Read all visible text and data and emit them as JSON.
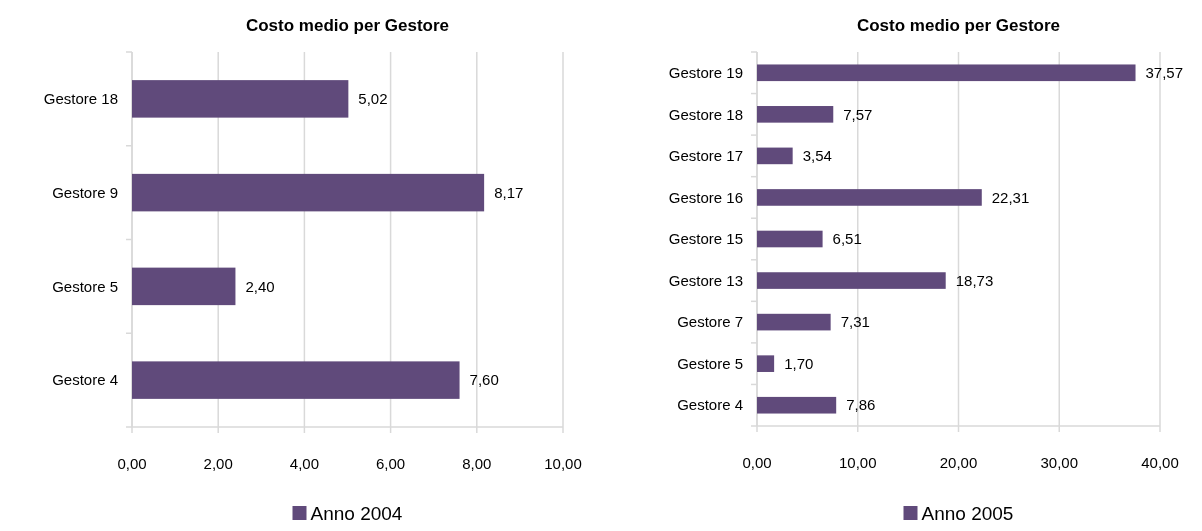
{
  "chart_data": [
    {
      "type": "bar",
      "orientation": "horizontal",
      "title": "Costo medio per Gestore",
      "categories": [
        "Gestore 18",
        "Gestore 9",
        "Gestore 5",
        "Gestore 4"
      ],
      "series": [
        {
          "name": "Anno 2004",
          "color": "#604a7b",
          "values": [
            5.02,
            8.17,
            2.4,
            7.6
          ],
          "value_labels": [
            "5,02",
            "8,17",
            "2,40",
            "7,60"
          ]
        }
      ],
      "xlim": [
        0,
        10
      ],
      "xticks": [
        {
          "value": 0,
          "label": "0,00"
        },
        {
          "value": 2,
          "label": "2,00"
        },
        {
          "value": 4,
          "label": "4,00"
        },
        {
          "value": 6,
          "label": "6,00"
        },
        {
          "value": 8,
          "label": "8,00"
        },
        {
          "value": 10,
          "label": "10,00"
        }
      ],
      "grid": "x",
      "legend": "bottom"
    },
    {
      "type": "bar",
      "orientation": "horizontal",
      "title": "Costo medio per Gestore",
      "categories": [
        "Gestore 19",
        "Gestore 18",
        "Gestore 17",
        "Gestore 16",
        "Gestore 15",
        "Gestore 13",
        "Gestore 7",
        "Gestore 5",
        "Gestore 4"
      ],
      "series": [
        {
          "name": "Anno 2005",
          "color": "#604a7b",
          "values": [
            37.57,
            7.57,
            3.54,
            22.31,
            6.51,
            18.73,
            7.31,
            1.7,
            7.86
          ],
          "value_labels": [
            "37,57",
            "7,57",
            "3,54",
            "22,31",
            "6,51",
            "18,73",
            "7,31",
            "1,70",
            "7,86"
          ]
        }
      ],
      "xlim": [
        0,
        40
      ],
      "xticks": [
        {
          "value": 0,
          "label": "0,00"
        },
        {
          "value": 10,
          "label": "10,00"
        },
        {
          "value": 20,
          "label": "20,00"
        },
        {
          "value": 30,
          "label": "30,00"
        },
        {
          "value": 40,
          "label": "40,00"
        }
      ],
      "grid": "x",
      "legend": "bottom"
    }
  ]
}
